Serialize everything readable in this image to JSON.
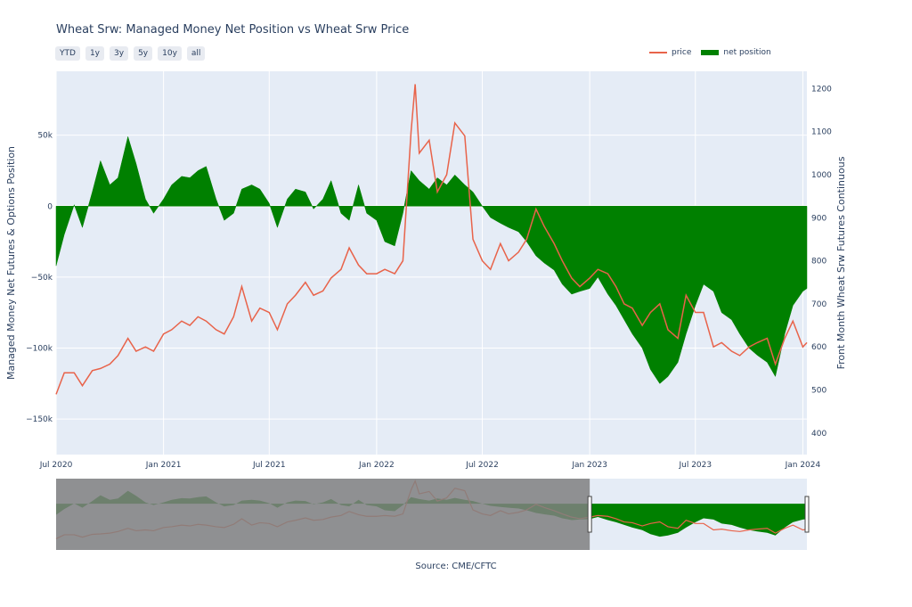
{
  "title": "Wheat Srw: Managed Money Net Position vs Wheat Srw Price",
  "range_buttons": [
    "YTD",
    "1y",
    "3y",
    "5y",
    "10y",
    "all"
  ],
  "legend": [
    {
      "label": "price",
      "color": "#e8634a",
      "kind": "line"
    },
    {
      "label": "net position",
      "color": "#008000",
      "kind": "area"
    }
  ],
  "source": "Source: CME/CFTC",
  "chart_data": {
    "type": "line",
    "xlabel": "",
    "y_left_label": "Managed Money Net Futures & Options Position",
    "y_right_label": "Front Month Wheat Srw Futures Continuous",
    "x_range": [
      "2020-07-01",
      "2024-01-08"
    ],
    "y_left_range": [
      -175000,
      95000
    ],
    "y_right_range": [
      350,
      1240
    ],
    "x_ticks": [
      "Jul 2020",
      "Jan 2021",
      "Jul 2021",
      "Jan 2022",
      "Jul 2022",
      "Jan 2023",
      "Jul 2023",
      "Jan 2024"
    ],
    "y_left_ticks": [
      "50k",
      "0",
      "−50k",
      "−100k",
      "−150k"
    ],
    "y_right_ticks": [
      "1200",
      "1100",
      "1000",
      "900",
      "800",
      "700",
      "600",
      "500",
      "400"
    ],
    "series": [
      {
        "name": "net position",
        "type": "area",
        "color": "#008000",
        "x": [
          "2020-07-01",
          "2020-07-15",
          "2020-08-01",
          "2020-08-15",
          "2020-09-01",
          "2020-09-15",
          "2020-10-01",
          "2020-10-15",
          "2020-11-01",
          "2020-11-15",
          "2020-12-01",
          "2020-12-15",
          "2021-01-01",
          "2021-01-15",
          "2021-02-01",
          "2021-02-15",
          "2021-03-01",
          "2021-03-15",
          "2021-04-01",
          "2021-04-15",
          "2021-05-01",
          "2021-05-15",
          "2021-06-01",
          "2021-06-15",
          "2021-07-01",
          "2021-07-15",
          "2021-08-01",
          "2021-08-15",
          "2021-09-01",
          "2021-09-15",
          "2021-10-01",
          "2021-10-15",
          "2021-11-01",
          "2021-11-15",
          "2021-12-01",
          "2021-12-15",
          "2022-01-01",
          "2022-01-15",
          "2022-02-01",
          "2022-02-15",
          "2022-03-01",
          "2022-03-15",
          "2022-04-01",
          "2022-04-15",
          "2022-05-01",
          "2022-05-15",
          "2022-06-01",
          "2022-06-15",
          "2022-07-01",
          "2022-07-15",
          "2022-08-01",
          "2022-08-15",
          "2022-09-01",
          "2022-09-15",
          "2022-10-01",
          "2022-10-15",
          "2022-11-01",
          "2022-11-15",
          "2022-12-01",
          "2022-12-15",
          "2023-01-01",
          "2023-01-15",
          "2023-02-01",
          "2023-02-15",
          "2023-03-01",
          "2023-03-15",
          "2023-04-01",
          "2023-04-15",
          "2023-05-01",
          "2023-05-15",
          "2023-06-01",
          "2023-06-15",
          "2023-07-01",
          "2023-07-15",
          "2023-08-01",
          "2023-08-15",
          "2023-09-01",
          "2023-09-15",
          "2023-10-01",
          "2023-10-15",
          "2023-11-01",
          "2023-11-15",
          "2023-12-01",
          "2023-12-15",
          "2024-01-01",
          "2024-01-08"
        ],
        "values": [
          -42000,
          -20000,
          1000,
          -15000,
          10000,
          32000,
          15000,
          20000,
          49000,
          30000,
          5000,
          -5000,
          5000,
          15000,
          21000,
          20000,
          25000,
          28000,
          5000,
          -10000,
          -5000,
          12000,
          15000,
          12000,
          2000,
          -15000,
          5000,
          12000,
          10000,
          -2000,
          5000,
          18000,
          -5000,
          -10000,
          15000,
          -5000,
          -10000,
          -25000,
          -28000,
          -5000,
          25000,
          18000,
          12000,
          20000,
          15000,
          22000,
          15000,
          10000,
          0,
          -8000,
          -12000,
          -15000,
          -18000,
          -25000,
          -35000,
          -40000,
          -45000,
          -55000,
          -62000,
          -60000,
          -58000,
          -50000,
          -62000,
          -70000,
          -80000,
          -90000,
          -100000,
          -115000,
          -125000,
          -120000,
          -110000,
          -90000,
          -70000,
          -55000,
          -60000,
          -75000,
          -80000,
          -90000,
          -100000,
          -105000,
          -110000,
          -120000,
          -90000,
          -70000,
          -60000,
          -58000
        ]
      },
      {
        "name": "price",
        "type": "line",
        "color": "#e8634a",
        "x": [
          "2020-07-01",
          "2020-07-15",
          "2020-08-01",
          "2020-08-15",
          "2020-09-01",
          "2020-09-15",
          "2020-10-01",
          "2020-10-15",
          "2020-11-01",
          "2020-11-15",
          "2020-12-01",
          "2020-12-15",
          "2021-01-01",
          "2021-01-15",
          "2021-02-01",
          "2021-02-15",
          "2021-03-01",
          "2021-03-15",
          "2021-04-01",
          "2021-04-15",
          "2021-05-01",
          "2021-05-15",
          "2021-06-01",
          "2021-06-15",
          "2021-07-01",
          "2021-07-15",
          "2021-08-01",
          "2021-08-15",
          "2021-09-01",
          "2021-09-15",
          "2021-10-01",
          "2021-10-15",
          "2021-11-01",
          "2021-11-15",
          "2021-12-01",
          "2021-12-15",
          "2022-01-01",
          "2022-01-15",
          "2022-02-01",
          "2022-02-15",
          "2022-03-01",
          "2022-03-08",
          "2022-03-15",
          "2022-04-01",
          "2022-04-15",
          "2022-05-01",
          "2022-05-15",
          "2022-06-01",
          "2022-06-15",
          "2022-07-01",
          "2022-07-15",
          "2022-08-01",
          "2022-08-15",
          "2022-09-01",
          "2022-09-15",
          "2022-10-01",
          "2022-10-15",
          "2022-11-01",
          "2022-11-15",
          "2022-12-01",
          "2022-12-15",
          "2023-01-01",
          "2023-01-15",
          "2023-02-01",
          "2023-02-15",
          "2023-03-01",
          "2023-03-15",
          "2023-04-01",
          "2023-04-15",
          "2023-05-01",
          "2023-05-15",
          "2023-06-01",
          "2023-06-15",
          "2023-07-01",
          "2023-07-15",
          "2023-08-01",
          "2023-08-15",
          "2023-09-01",
          "2023-09-15",
          "2023-10-01",
          "2023-10-15",
          "2023-11-01",
          "2023-11-15",
          "2023-12-01",
          "2023-12-15",
          "2024-01-01",
          "2024-01-08"
        ],
        "values": [
          490,
          540,
          540,
          510,
          545,
          550,
          560,
          580,
          620,
          590,
          600,
          590,
          630,
          640,
          660,
          650,
          670,
          660,
          640,
          630,
          670,
          740,
          660,
          690,
          680,
          640,
          700,
          720,
          750,
          720,
          730,
          760,
          780,
          830,
          790,
          770,
          770,
          780,
          770,
          800,
          1100,
          1210,
          1050,
          1080,
          960,
          1000,
          1120,
          1090,
          850,
          800,
          780,
          840,
          800,
          820,
          850,
          920,
          880,
          840,
          800,
          760,
          740,
          760,
          780,
          770,
          740,
          700,
          690,
          650,
          680,
          700,
          640,
          620,
          720,
          680,
          680,
          600,
          610,
          590,
          580,
          600,
          610,
          620,
          560,
          620,
          660,
          600,
          610
        ]
      }
    ],
    "range_selector": {
      "start": "2023-01-01",
      "end": "2024-01-08"
    }
  }
}
